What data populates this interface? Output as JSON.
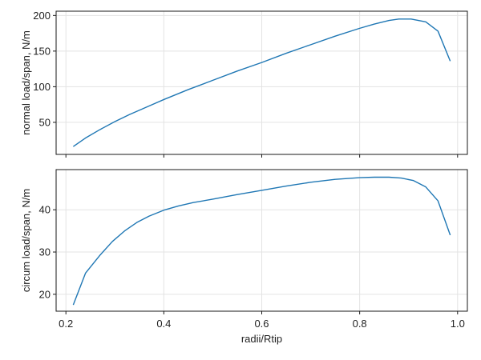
{
  "chart_data": [
    {
      "type": "line",
      "title": "",
      "xlabel": "",
      "ylabel": "normal load/span, N/m",
      "xlim": [
        0.18,
        1.02
      ],
      "ylim": [
        5,
        206
      ],
      "xticks": [
        0.2,
        0.4,
        0.6,
        0.8,
        1.0
      ],
      "yticks": [
        50,
        100,
        150,
        200
      ],
      "ytick_labels": [
        "50",
        "100",
        "150",
        "200"
      ],
      "show_xtick_labels": false,
      "grid": true,
      "colors": {
        "line": "#1f77b4"
      },
      "series": [
        {
          "x": [
            0.215,
            0.24,
            0.27,
            0.3,
            0.33,
            0.36,
            0.4,
            0.45,
            0.5,
            0.55,
            0.6,
            0.65,
            0.7,
            0.75,
            0.8,
            0.83,
            0.86,
            0.88,
            0.905,
            0.935,
            0.96,
            0.985
          ],
          "y": [
            16,
            28,
            40,
            51,
            61,
            70,
            82,
            96,
            109,
            122,
            134,
            147,
            159,
            171,
            182,
            188,
            193,
            195,
            195,
            191,
            178,
            136
          ]
        }
      ]
    },
    {
      "type": "line",
      "title": "",
      "xlabel": "radii/Rtip",
      "ylabel": "circum load/span, N/m",
      "xlim": [
        0.18,
        1.02
      ],
      "ylim": [
        16,
        49.5
      ],
      "xticks": [
        0.2,
        0.4,
        0.6,
        0.8,
        1.0
      ],
      "xtick_labels": [
        "0.2",
        "0.4",
        "0.6",
        "0.8",
        "1.0"
      ],
      "yticks": [
        20,
        30,
        40
      ],
      "ytick_labels": [
        "20",
        "30",
        "40"
      ],
      "show_xtick_labels": true,
      "grid": true,
      "colors": {
        "line": "#1f77b4"
      },
      "series": [
        {
          "x": [
            0.215,
            0.24,
            0.27,
            0.295,
            0.32,
            0.345,
            0.37,
            0.4,
            0.43,
            0.46,
            0.5,
            0.55,
            0.6,
            0.65,
            0.7,
            0.75,
            0.8,
            0.83,
            0.86,
            0.885,
            0.91,
            0.935,
            0.96,
            0.985
          ],
          "y": [
            17.5,
            25,
            29.3,
            32.5,
            35,
            37,
            38.5,
            39.9,
            40.9,
            41.7,
            42.5,
            43.6,
            44.6,
            45.6,
            46.5,
            47.2,
            47.6,
            47.7,
            47.7,
            47.5,
            46.9,
            45.4,
            42.1,
            34
          ]
        }
      ]
    }
  ]
}
